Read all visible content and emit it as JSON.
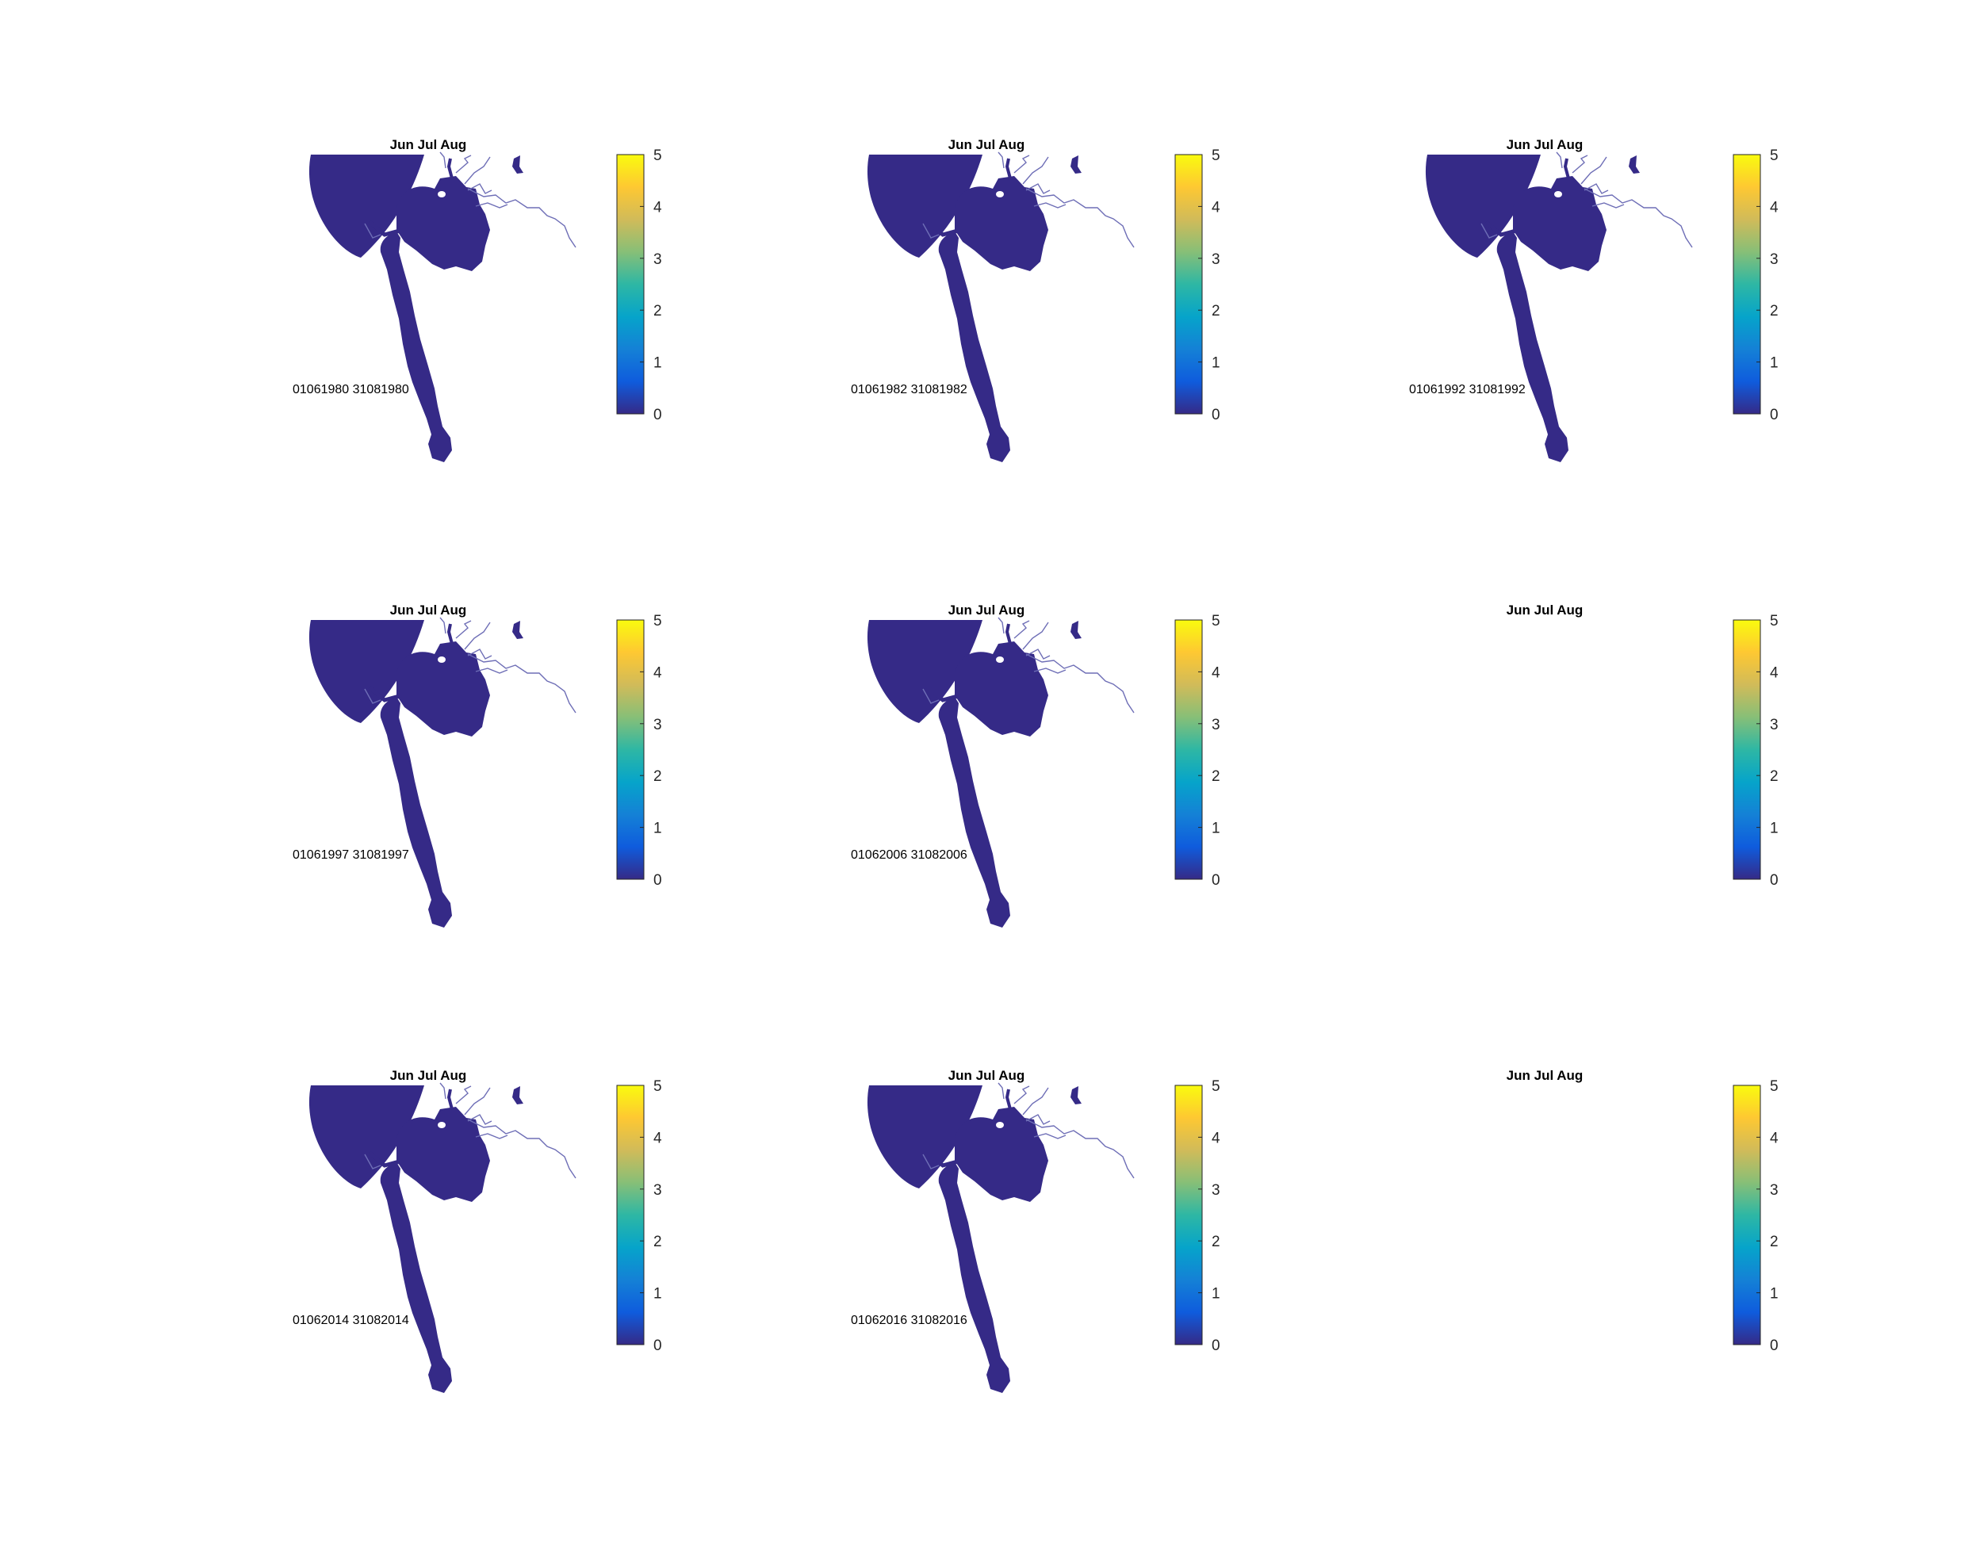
{
  "chart_data": {
    "type": "heatmap",
    "colormap": "parula",
    "colors": {
      "water": "#352A87",
      "river_line": "#6E6EB6",
      "parula": [
        "#352A87",
        "#0F5CDD",
        "#1481D6",
        "#06A4CA",
        "#2EB7A4",
        "#87BF77",
        "#D1BB59",
        "#FEC832",
        "#F9FB0E"
      ]
    },
    "clim": [
      0,
      5
    ],
    "colorbar_ticks": [
      "0",
      "1",
      "2",
      "3",
      "4",
      "5"
    ],
    "panels": [
      {
        "title": "Jun Jul Aug",
        "date_label": "01061980 31081980",
        "has_map": true,
        "value": 0
      },
      {
        "title": "Jun Jul Aug",
        "date_label": "01061982 31081982",
        "has_map": true,
        "value": 0
      },
      {
        "title": "Jun Jul Aug",
        "date_label": "01061992 31081992",
        "has_map": true,
        "value": 0
      },
      {
        "title": "Jun Jul Aug",
        "date_label": "01061997 31081997",
        "has_map": true,
        "value": 0
      },
      {
        "title": "Jun Jul Aug",
        "date_label": "01062006 31082006",
        "has_map": true,
        "value": 0
      },
      {
        "title": "Jun Jul Aug",
        "date_label": "",
        "has_map": false,
        "value": null
      },
      {
        "title": "Jun Jul Aug",
        "date_label": "01062014 31082014",
        "has_map": true,
        "value": 0
      },
      {
        "title": "Jun Jul Aug",
        "date_label": "01062016 31082016",
        "has_map": true,
        "value": 0
      },
      {
        "title": "Jun Jul Aug",
        "date_label": "",
        "has_map": false,
        "value": null
      }
    ]
  }
}
